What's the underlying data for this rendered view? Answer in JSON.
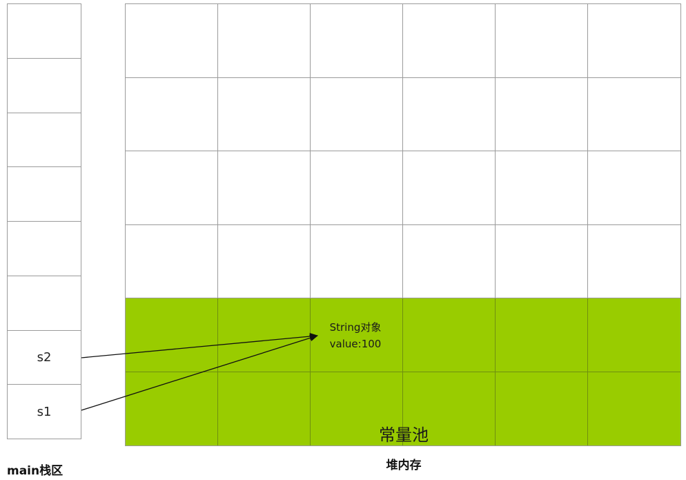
{
  "stack": {
    "label": "main栈区",
    "slots": [
      "",
      "",
      "",
      "",
      "",
      "",
      "s2",
      "s1"
    ]
  },
  "heap": {
    "label": "堆内存",
    "columns": 6,
    "rows": 6,
    "pool_rows": 2,
    "pool_label": "常量池",
    "pool_color": "#99cc00"
  },
  "string_object": {
    "line1": "String对象",
    "line2": "value:100"
  },
  "references": [
    {
      "from": "s2",
      "to": "string_object"
    },
    {
      "from": "s1",
      "to": "string_object"
    }
  ]
}
